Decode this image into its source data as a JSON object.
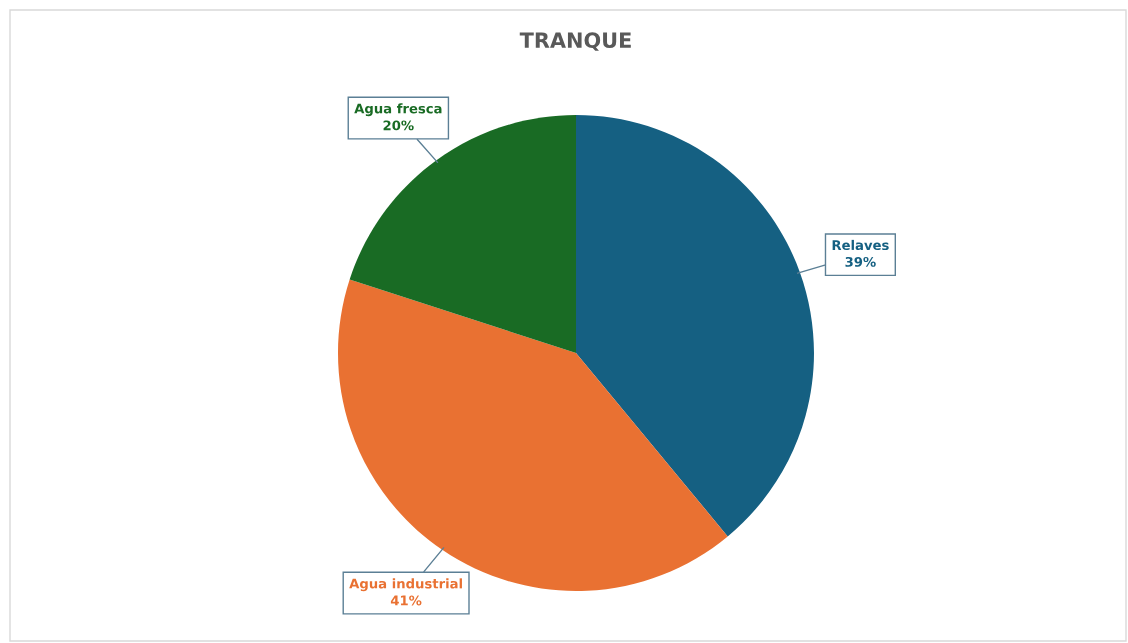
{
  "chart_data": {
    "type": "pie",
    "title": "TRANQUE",
    "categories": [
      "Relaves",
      "Agua industrial",
      "Agua fresca"
    ],
    "values": [
      39,
      41,
      20
    ],
    "colors": [
      "#156082",
      "#e97132",
      "#196b24"
    ],
    "value_labels": [
      "39%",
      "41%",
      "20%"
    ]
  }
}
